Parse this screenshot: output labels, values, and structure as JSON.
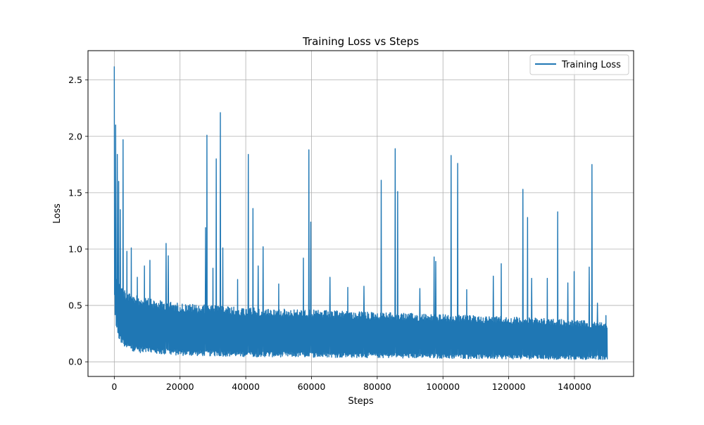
{
  "chart_data": {
    "type": "line",
    "title": "Training Loss vs Steps",
    "xlabel": "Steps",
    "ylabel": "Loss",
    "xlim": [
      -8000,
      158000
    ],
    "ylim": [
      -0.13,
      2.76
    ],
    "xticks": [
      0,
      20000,
      40000,
      60000,
      80000,
      100000,
      120000,
      140000
    ],
    "yticks": [
      0.0,
      0.5,
      1.0,
      1.5,
      2.0,
      2.5
    ],
    "xtick_labels": [
      "0",
      "20000",
      "40000",
      "60000",
      "80000",
      "100000",
      "120000",
      "140000"
    ],
    "ytick_labels": [
      "0.0",
      "0.5",
      "1.0",
      "1.5",
      "2.0",
      "2.5"
    ],
    "grid": true,
    "legend_position": "upper right",
    "series": [
      {
        "name": "Training Loss",
        "color": "#1f77b4",
        "x_range": [
          0,
          150000
        ],
        "envelope": {
          "x": [
            0,
            100,
            300,
            600,
            1000,
            2000,
            3000,
            5000,
            8000,
            12000,
            20000,
            30000,
            40000,
            60000,
            80000,
            100000,
            120000,
            140000,
            150000
          ],
          "upper": [
            2.62,
            1.2,
            0.85,
            0.75,
            0.72,
            0.7,
            0.65,
            0.6,
            0.58,
            0.55,
            0.52,
            0.5,
            0.48,
            0.46,
            0.44,
            0.42,
            0.4,
            0.37,
            0.35
          ],
          "lower": [
            0.9,
            0.45,
            0.35,
            0.28,
            0.22,
            0.17,
            0.13,
            0.1,
            0.08,
            0.07,
            0.055,
            0.05,
            0.045,
            0.04,
            0.035,
            0.03,
            0.025,
            0.02,
            0.02
          ]
        },
        "spikes": [
          {
            "x": 0,
            "y": 2.62
          },
          {
            "x": 400,
            "y": 2.1
          },
          {
            "x": 900,
            "y": 1.84
          },
          {
            "x": 1300,
            "y": 1.6
          },
          {
            "x": 1800,
            "y": 1.35
          },
          {
            "x": 2700,
            "y": 1.97
          },
          {
            "x": 3800,
            "y": 0.98
          },
          {
            "x": 5200,
            "y": 1.01
          },
          {
            "x": 7000,
            "y": 0.75
          },
          {
            "x": 9200,
            "y": 0.85
          },
          {
            "x": 10800,
            "y": 0.9
          },
          {
            "x": 15800,
            "y": 1.05
          },
          {
            "x": 16400,
            "y": 0.94
          },
          {
            "x": 27800,
            "y": 1.19
          },
          {
            "x": 28200,
            "y": 2.01
          },
          {
            "x": 30000,
            "y": 0.83
          },
          {
            "x": 31000,
            "y": 1.8
          },
          {
            "x": 32300,
            "y": 2.21
          },
          {
            "x": 33000,
            "y": 1.01
          },
          {
            "x": 37500,
            "y": 0.73
          },
          {
            "x": 40800,
            "y": 1.84
          },
          {
            "x": 42200,
            "y": 1.36
          },
          {
            "x": 43800,
            "y": 0.85
          },
          {
            "x": 45300,
            "y": 1.02
          },
          {
            "x": 50000,
            "y": 0.69
          },
          {
            "x": 57500,
            "y": 0.92
          },
          {
            "x": 59200,
            "y": 1.88
          },
          {
            "x": 59800,
            "y": 1.24
          },
          {
            "x": 65600,
            "y": 0.75
          },
          {
            "x": 71000,
            "y": 0.66
          },
          {
            "x": 76000,
            "y": 0.67
          },
          {
            "x": 81200,
            "y": 1.61
          },
          {
            "x": 85500,
            "y": 1.89
          },
          {
            "x": 86200,
            "y": 1.51
          },
          {
            "x": 93000,
            "y": 0.65
          },
          {
            "x": 97300,
            "y": 0.93
          },
          {
            "x": 97800,
            "y": 0.89
          },
          {
            "x": 102500,
            "y": 1.83
          },
          {
            "x": 104500,
            "y": 1.76
          },
          {
            "x": 107200,
            "y": 0.64
          },
          {
            "x": 115300,
            "y": 0.76
          },
          {
            "x": 117700,
            "y": 0.87
          },
          {
            "x": 124300,
            "y": 1.53
          },
          {
            "x": 125700,
            "y": 1.28
          },
          {
            "x": 127000,
            "y": 0.74
          },
          {
            "x": 131700,
            "y": 0.74
          },
          {
            "x": 134900,
            "y": 1.33
          },
          {
            "x": 138000,
            "y": 0.7
          },
          {
            "x": 139900,
            "y": 0.8
          },
          {
            "x": 144500,
            "y": 0.84
          },
          {
            "x": 145300,
            "y": 1.75
          },
          {
            "x": 147000,
            "y": 0.52
          },
          {
            "x": 149600,
            "y": 0.41
          }
        ]
      }
    ]
  }
}
